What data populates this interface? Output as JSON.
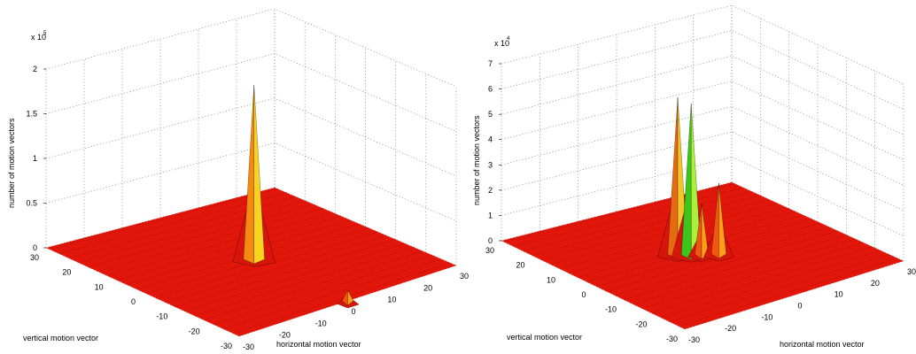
{
  "chart_data": [
    {
      "type": "surface3d",
      "xlabel": "horizontal motion vector",
      "ylabel": "vertical motion vector",
      "zlabel": "number of motion vectors",
      "z_exponent_label": "x 10",
      "z_exponent_power": "5",
      "x_ticks": [
        "-30",
        "-20",
        "-10",
        "0",
        "10",
        "20",
        "30"
      ],
      "y_ticks": [
        "30",
        "20",
        "10",
        "0",
        "-10",
        "-20",
        "-30"
      ],
      "z_ticks": [
        "0",
        "0.5",
        "1",
        "1.5",
        "2"
      ],
      "xlim": [
        -30,
        30
      ],
      "ylim": [
        -30,
        30
      ],
      "zlim": [
        0,
        200000
      ],
      "grid": true,
      "peaks": [
        {
          "x": 0,
          "y": 0,
          "value": 195000
        },
        {
          "x": 0,
          "y": -30,
          "value": 12000
        }
      ]
    },
    {
      "type": "surface3d",
      "xlabel": "horizontal motion vector",
      "ylabel": "vertical motion vector",
      "zlabel": "number of motion vectors",
      "z_exponent_label": "x 10",
      "z_exponent_power": "4",
      "x_ticks": [
        "-30",
        "-20",
        "-10",
        "0",
        "10",
        "20",
        "30"
      ],
      "y_ticks": [
        "30",
        "20",
        "10",
        "0",
        "-10",
        "-20",
        "-30"
      ],
      "z_ticks": [
        "0",
        "1",
        "2",
        "3",
        "4",
        "5",
        "6",
        "7"
      ],
      "xlim": [
        -30,
        30
      ],
      "ylim": [
        -30,
        30
      ],
      "zlim": [
        0,
        70000
      ],
      "grid": true,
      "peaks": [
        {
          "x": -5,
          "y": 3,
          "value": 62000
        },
        {
          "x": -3,
          "y": 1,
          "value": 60000
        },
        {
          "x": 2,
          "y": -2,
          "value": 28000
        },
        {
          "x": -1,
          "y": 0,
          "value": 20000
        }
      ]
    }
  ]
}
